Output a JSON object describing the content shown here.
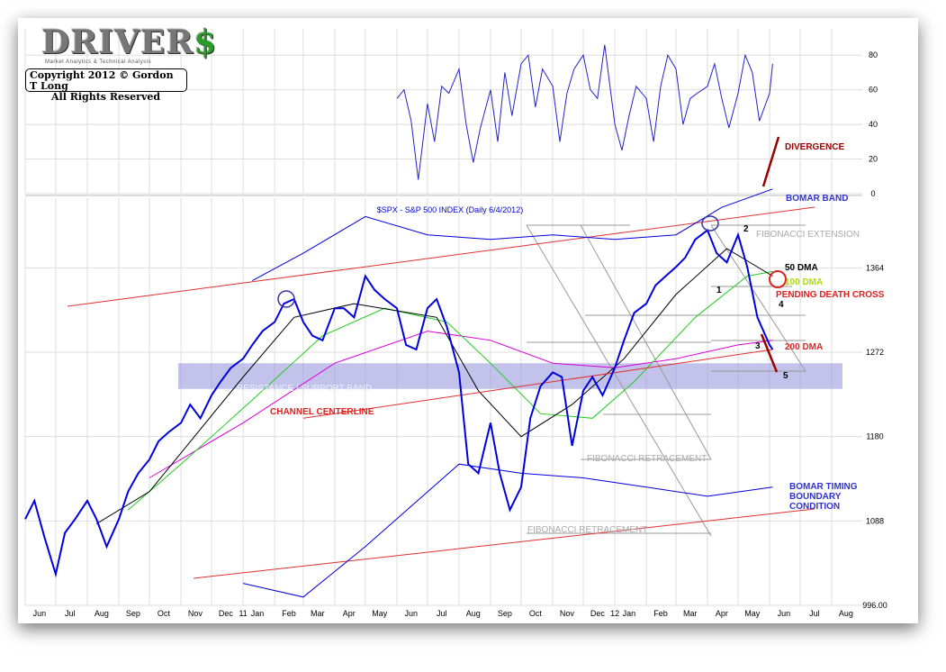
{
  "logo": {
    "brand": "DRIVER",
    "brand_dollar": "$",
    "tagline": "Market Analytics & Technical Analysis"
  },
  "copyright": {
    "line1": "Copyright 2012 © Gordon T Long",
    "line2": "All Rights Reserved"
  },
  "colors": {
    "price": "#0000dd",
    "indicator": "#2222cc",
    "channel": "#e03030",
    "dma50": "#000000",
    "dma100": "#22cc22",
    "dma200": "#dd00dd",
    "band": "#9999dd",
    "annotation": "#cc0000",
    "fib": "#999999"
  },
  "chart_data": [
    {
      "type": "line",
      "panel": "indicator",
      "ylim": [
        0,
        90
      ],
      "yticks": [
        "80",
        "60",
        "40",
        "20",
        "0"
      ],
      "ytick_values": [
        80,
        60,
        40,
        20,
        0
      ],
      "series": [
        {
          "name": "",
          "x": [
            "2011-06-01",
            "2011-06-08",
            "2011-06-15",
            "2011-06-22",
            "2011-07-01",
            "2011-07-08",
            "2011-07-15",
            "2011-07-22",
            "2011-08-01",
            "2011-08-08",
            "2011-08-15",
            "2011-08-22",
            "2011-09-01",
            "2011-09-08",
            "2011-09-15",
            "2011-09-22",
            "2011-10-01",
            "2011-10-08",
            "2011-10-15",
            "2011-10-22",
            "2011-11-01",
            "2011-11-08",
            "2011-11-15",
            "2011-11-22",
            "2011-12-01",
            "2011-12-08",
            "2011-12-15",
            "2011-12-22",
            "2012-01-01",
            "2012-01-08",
            "2012-01-15",
            "2012-01-22",
            "2012-02-01",
            "2012-02-08",
            "2012-02-15",
            "2012-02-22",
            "2012-03-01",
            "2012-03-08",
            "2012-03-15",
            "2012-03-22",
            "2012-04-01",
            "2012-04-08",
            "2012-04-15",
            "2012-04-22",
            "2012-05-01",
            "2012-05-08",
            "2012-05-15",
            "2012-05-22",
            "2012-06-01",
            "2012-06-04"
          ],
          "y": [
            55,
            60,
            42,
            8,
            52,
            30,
            62,
            58,
            72,
            40,
            18,
            38,
            60,
            30,
            70,
            45,
            75,
            80,
            50,
            72,
            62,
            30,
            58,
            72,
            80,
            60,
            55,
            86,
            40,
            25,
            45,
            62,
            55,
            30,
            62,
            80,
            72,
            40,
            55,
            58,
            62,
            75,
            55,
            38,
            58,
            80,
            70,
            42,
            58,
            75
          ]
        }
      ]
    },
    {
      "type": "line",
      "panel": "price",
      "title": "$SPX - S&P 500 INDEX (Daily 6/4/2012)",
      "ylim": [
        996,
        1440
      ],
      "yticks": [
        "1364",
        "1272",
        "1180",
        "1088",
        "996.00"
      ],
      "ytick_values": [
        1364,
        1272,
        1180,
        1088,
        996
      ],
      "x_categories": [
        "Jun",
        "Jul",
        "Aug",
        "Sep",
        "Oct",
        "Nov",
        "Dec",
        "11",
        "Jan",
        "Feb",
        "Mar",
        "Apr",
        "May",
        "Jun",
        "Jul",
        "Aug",
        "Sep",
        "Oct",
        "Nov",
        "Dec",
        "12",
        "Jan",
        "Feb",
        "Mar",
        "Apr",
        "May",
        "Jun",
        "Jul",
        "Aug"
      ],
      "x_category_dates": [
        "2010-06-15",
        "2010-07-15",
        "2010-08-15",
        "2010-09-15",
        "2010-10-15",
        "2010-11-15",
        "2010-12-15",
        "2011-01-01",
        "2011-01-15",
        "2011-02-15",
        "2011-03-15",
        "2011-04-15",
        "2011-05-15",
        "2011-06-15",
        "2011-07-15",
        "2011-08-15",
        "2011-09-15",
        "2011-10-15",
        "2011-11-15",
        "2011-12-15",
        "2012-01-01",
        "2012-01-15",
        "2012-02-15",
        "2012-03-15",
        "2012-04-15",
        "2012-05-15",
        "2012-06-15",
        "2012-07-15",
        "2012-08-15"
      ],
      "series": [
        {
          "name": "$SPX",
          "x": [
            "2010-06-01",
            "2010-06-10",
            "2010-06-20",
            "2010-07-01",
            "2010-07-10",
            "2010-07-20",
            "2010-08-01",
            "2010-08-10",
            "2010-08-20",
            "2010-09-01",
            "2010-09-10",
            "2010-09-20",
            "2010-10-01",
            "2010-10-10",
            "2010-10-20",
            "2010-11-01",
            "2010-11-10",
            "2010-11-20",
            "2010-12-01",
            "2010-12-10",
            "2010-12-20",
            "2011-01-01",
            "2011-01-10",
            "2011-01-20",
            "2011-02-01",
            "2011-02-10",
            "2011-02-20",
            "2011-03-01",
            "2011-03-10",
            "2011-03-20",
            "2011-04-01",
            "2011-04-10",
            "2011-04-20",
            "2011-05-01",
            "2011-05-10",
            "2011-05-20",
            "2011-06-01",
            "2011-06-10",
            "2011-06-20",
            "2011-07-01",
            "2011-07-10",
            "2011-07-20",
            "2011-08-01",
            "2011-08-10",
            "2011-08-20",
            "2011-09-01",
            "2011-09-10",
            "2011-09-20",
            "2011-10-01",
            "2011-10-10",
            "2011-10-20",
            "2011-11-01",
            "2011-11-10",
            "2011-11-20",
            "2011-12-01",
            "2011-12-10",
            "2011-12-20",
            "2012-01-01",
            "2012-01-10",
            "2012-01-20",
            "2012-02-01",
            "2012-02-10",
            "2012-02-20",
            "2012-03-01",
            "2012-03-10",
            "2012-03-20",
            "2012-04-01",
            "2012-04-10",
            "2012-04-20",
            "2012-05-01",
            "2012-05-10",
            "2012-05-20",
            "2012-06-01",
            "2012-06-04"
          ],
          "y": [
            1090,
            1110,
            1070,
            1030,
            1075,
            1090,
            1110,
            1090,
            1060,
            1090,
            1120,
            1140,
            1155,
            1175,
            1185,
            1195,
            1215,
            1200,
            1225,
            1240,
            1255,
            1265,
            1280,
            1295,
            1305,
            1325,
            1330,
            1305,
            1290,
            1285,
            1320,
            1320,
            1310,
            1355,
            1340,
            1330,
            1320,
            1280,
            1275,
            1320,
            1330,
            1300,
            1250,
            1150,
            1140,
            1195,
            1140,
            1100,
            1125,
            1200,
            1235,
            1250,
            1245,
            1170,
            1230,
            1245,
            1225,
            1255,
            1285,
            1315,
            1325,
            1345,
            1355,
            1365,
            1375,
            1395,
            1405,
            1380,
            1370,
            1400,
            1365,
            1310,
            1280,
            1275
          ]
        },
        {
          "name": "50 DMA",
          "x": [
            "2010-08-10",
            "2010-10-01",
            "2011-01-01",
            "2011-02-20",
            "2011-04-20",
            "2011-07-10",
            "2011-08-20",
            "2011-10-01",
            "2011-11-20",
            "2012-01-10",
            "2012-03-01",
            "2012-04-20",
            "2012-06-04"
          ],
          "y": [
            1085,
            1120,
            1245,
            1310,
            1325,
            1310,
            1230,
            1180,
            1215,
            1265,
            1335,
            1385,
            1355
          ]
        },
        {
          "name": "100 DMA",
          "x": [
            "2010-09-10",
            "2010-11-01",
            "2011-01-10",
            "2011-03-20",
            "2011-05-20",
            "2011-07-20",
            "2011-09-01",
            "2011-10-20",
            "2011-12-10",
            "2012-01-20",
            "2012-03-20",
            "2012-05-10",
            "2012-06-04"
          ],
          "y": [
            1100,
            1150,
            1220,
            1290,
            1320,
            1305,
            1260,
            1205,
            1200,
            1240,
            1310,
            1355,
            1360
          ]
        },
        {
          "name": "200 DMA",
          "x": [
            "2010-10-01",
            "2011-01-01",
            "2011-04-01",
            "2011-07-01",
            "2011-09-01",
            "2011-11-01",
            "2012-01-01",
            "2012-03-01",
            "2012-05-01",
            "2012-06-04"
          ],
          "y": [
            1135,
            1195,
            1260,
            1295,
            1285,
            1260,
            1255,
            1265,
            1280,
            1285
          ]
        },
        {
          "name": "BOMAR BAND upper",
          "x": [
            "2011-01-10",
            "2011-03-01",
            "2011-05-01",
            "2011-07-01",
            "2011-09-01",
            "2011-11-01",
            "2012-01-01",
            "2012-03-01",
            "2012-04-15",
            "2012-06-04"
          ],
          "y": [
            1350,
            1380,
            1420,
            1400,
            1395,
            1400,
            1395,
            1400,
            1430,
            1450
          ]
        },
        {
          "name": "BOMAR TIMING BOUNDARY CONDITION",
          "x": [
            "2011-01-01",
            "2011-03-01",
            "2011-05-01",
            "2011-08-01",
            "2011-10-01",
            "2011-12-01",
            "2012-02-01",
            "2012-04-01",
            "2012-06-04"
          ],
          "y": [
            1020,
            1005,
            1060,
            1150,
            1140,
            1135,
            1125,
            1115,
            1125
          ]
        },
        {
          "name": "CHANNEL CENTERLINE",
          "x": [
            "2011-03-01",
            "2012-06-04"
          ],
          "y": [
            1200,
            1275
          ]
        }
      ],
      "annotations": [
        "BOMAR BAND",
        "FIBONACCI EXTENSION",
        "50 DMA",
        "100 DMA",
        "PENDING DEATH CROSS",
        "200 DMA",
        "DIVERGENCE",
        "RESISTANCE / SUPPORT BAND",
        "CHANNEL CENTERLINE",
        "FIBONACCI RETRACEMENT",
        "FIBONACCI RETRACEMENT",
        "BOMAR TIMING BOUNDARY CONDITION",
        "1",
        "2",
        "3",
        "4",
        "5"
      ]
    }
  ]
}
